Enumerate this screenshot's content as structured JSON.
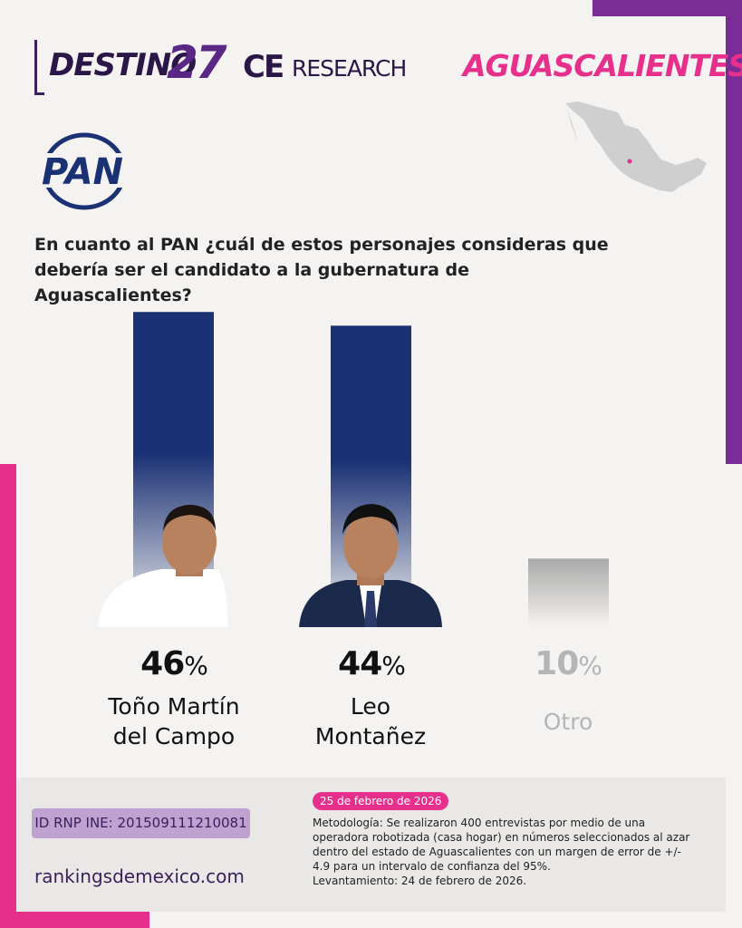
{
  "brand": {
    "destino": "DESTINO",
    "number": "27",
    "ce": "CE",
    "research": "RESEARCH"
  },
  "state": "AGUASCALIENTES",
  "party_logo_text": "PAN",
  "question": "En cuanto al PAN ¿cuál de estos personajes consideras que debería ser el candidato a la gubernatura de Aguascalientes?",
  "colors": {
    "bar": "#1a3174",
    "bar_other": "#a9a9a9",
    "accent_pink": "#e7308c",
    "accent_purple": "#7a2d97",
    "map_marker": "#e7308c"
  },
  "chart_data": {
    "type": "bar",
    "categories": [
      "Toño Martín del Campo",
      "Leo Montañez",
      "Otro"
    ],
    "values": [
      46,
      44,
      10
    ],
    "unit": "%",
    "labels": [
      {
        "value": "46",
        "unit": "%",
        "name_line1": "Toño Martín",
        "name_line2": "del Campo"
      },
      {
        "value": "44",
        "unit": "%",
        "name_line1": "Leo",
        "name_line2": "Montañez"
      },
      {
        "value": "10",
        "unit": "%",
        "name_line1": "Otro",
        "name_line2": ""
      }
    ]
  },
  "footer": {
    "rnp": "ID RNP INE: 201509111210081",
    "site": "rankingsdemexico.com",
    "date": "25 de febrero de 2026",
    "methodology": "Metodología: Se realizaron 400 entrevistas por medio de una operadora robotizada (casa hogar) en números seleccionados al azar dentro del estado de Aguascalientes con un margen de error de +/- 4.9 para un intervalo de confianza del 95%.",
    "fieldwork": "Levantamiento: 24 de febrero de 2026."
  }
}
